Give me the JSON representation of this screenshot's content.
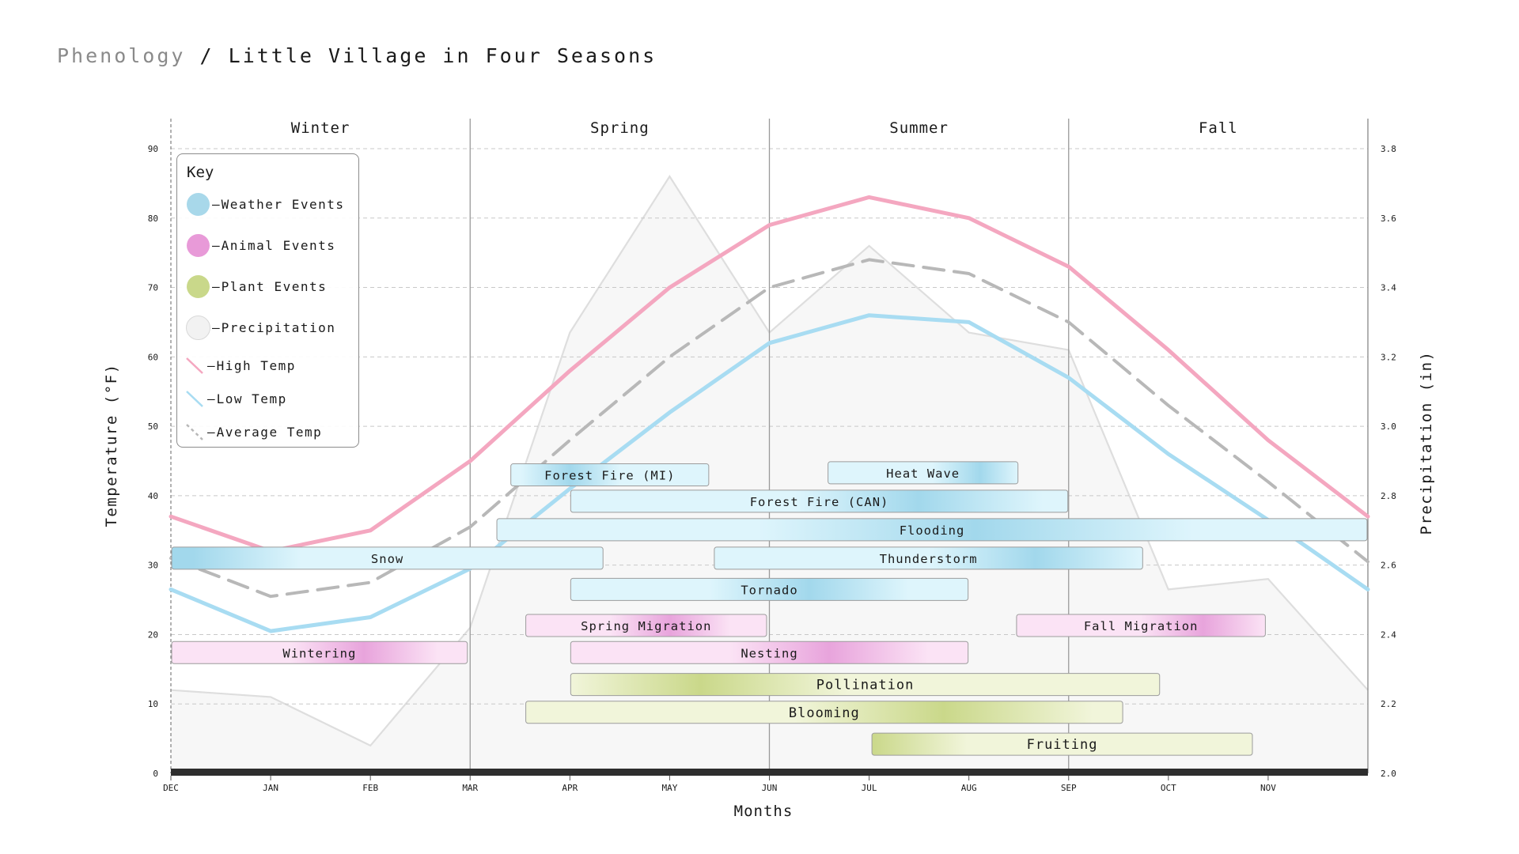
{
  "header": {
    "crumb": "Phenology",
    "separator": "/",
    "title": "Little Village in Four Seasons"
  },
  "legend": {
    "title": "Key",
    "items": [
      {
        "label": "Weather Events",
        "kind": "dot",
        "color": "#a8d8ea"
      },
      {
        "label": "Animal Events",
        "kind": "dot",
        "color": "#e89ad8"
      },
      {
        "label": "Plant Events",
        "kind": "dot",
        "color": "#c9d88a"
      },
      {
        "label": "Precipitation",
        "kind": "dot",
        "color": "#f2f2f2"
      },
      {
        "label": "High Temp",
        "kind": "line",
        "color": "#f4a7c0"
      },
      {
        "label": "Low Temp",
        "kind": "line",
        "color": "#a8dcf2"
      },
      {
        "label": "Average Temp",
        "kind": "dash",
        "color": "#b8b8b8"
      }
    ]
  },
  "chart_data": {
    "type": "line",
    "xlabel": "Months",
    "ylabel": "Temperature (°F)",
    "y2label": "Precipitation (in)",
    "months": [
      "DEC",
      "JAN",
      "FEB",
      "MAR",
      "APR",
      "MAY",
      "JUN",
      "JUL",
      "AUG",
      "SEP",
      "OCT",
      "NOV"
    ],
    "x_domain": [
      0,
      12
    ],
    "ylim": [
      0,
      90
    ],
    "y2lim": [
      2.0,
      3.8
    ],
    "yticks": [
      0,
      10,
      20,
      30,
      40,
      50,
      60,
      70,
      80,
      90
    ],
    "y2ticks": [
      "2.0",
      "2.2",
      "2.4",
      "2.6",
      "2.8",
      "3.0",
      "3.2",
      "3.4",
      "3.6",
      "3.8"
    ],
    "grid": true,
    "seasons": [
      {
        "name": "Winter",
        "start": 0,
        "end": 3
      },
      {
        "name": "Spring",
        "start": 3,
        "end": 6
      },
      {
        "name": "Summer",
        "start": 6,
        "end": 9
      },
      {
        "name": "Fall",
        "start": 9,
        "end": 12
      }
    ],
    "series": [
      {
        "name": "High Temp",
        "color": "#f4a7c0",
        "style": "solid",
        "x": [
          0,
          1,
          2,
          3,
          4,
          5,
          6,
          7,
          8,
          9,
          10,
          11,
          12
        ],
        "y": [
          37,
          32,
          35,
          45,
          58,
          70,
          79,
          83,
          80,
          73,
          61,
          48,
          37
        ]
      },
      {
        "name": "Low Temp",
        "color": "#a8dcf2",
        "style": "solid",
        "x": [
          0,
          1,
          2,
          3,
          4,
          5,
          6,
          7,
          8,
          9,
          10,
          11,
          12
        ],
        "y": [
          26.5,
          20.5,
          22.5,
          29.5,
          41,
          52,
          62,
          66,
          65,
          57,
          46,
          36.5,
          26.5
        ]
      },
      {
        "name": "Average Temp",
        "color": "#b8b8b8",
        "style": "dashed",
        "x": [
          0,
          1,
          2,
          3,
          4,
          5,
          6,
          7,
          8,
          9,
          10,
          11,
          12
        ],
        "y": [
          31,
          25.5,
          27.5,
          35.5,
          48,
          60,
          70,
          74,
          72,
          65,
          53,
          42,
          30.5
        ]
      }
    ],
    "precipitation": {
      "name": "Precipitation",
      "x": [
        0,
        1,
        2,
        3,
        4,
        5,
        6,
        7,
        8,
        9,
        10,
        11,
        12
      ],
      "y": [
        2.24,
        2.22,
        2.08,
        2.42,
        3.27,
        3.72,
        3.27,
        3.52,
        3.27,
        3.22,
        2.53,
        2.56,
        2.24
      ]
    },
    "events": [
      {
        "label": "Forest Fire (MI)",
        "category": "weather",
        "start": 3.4,
        "end": 5.4,
        "row_temp": 43.0,
        "peak": 0.3
      },
      {
        "label": "Heat Wave",
        "category": "weather",
        "start": 6.58,
        "end": 8.5,
        "row_temp": 43.3,
        "peak": 0.8
      },
      {
        "label": "Forest Fire (CAN)",
        "category": "weather",
        "start": 4.0,
        "end": 9.0,
        "row_temp": 39.2,
        "peak": 0.7
      },
      {
        "label": "Flooding",
        "category": "weather",
        "start": 3.26,
        "end": 12.0,
        "row_temp": 35.1,
        "peak": 0.55
      },
      {
        "label": "Snow",
        "category": "weather",
        "start": 0.0,
        "end": 4.34,
        "row_temp": 31.0,
        "peak": 0.05
      },
      {
        "label": "Thunderstorm",
        "category": "weather",
        "start": 5.44,
        "end": 9.75,
        "row_temp": 31.0,
        "peak": 0.75
      },
      {
        "label": "Tornado",
        "category": "weather",
        "start": 4.0,
        "end": 8.0,
        "row_temp": 26.5,
        "peak": 0.6
      },
      {
        "label": "Spring Migration",
        "category": "animal",
        "start": 3.55,
        "end": 5.98,
        "row_temp": 21.3,
        "peak": 0.6
      },
      {
        "label": "Fall Migration",
        "category": "animal",
        "start": 8.47,
        "end": 10.98,
        "row_temp": 21.3,
        "peak": 0.75
      },
      {
        "label": "Wintering",
        "category": "animal",
        "start": 0.0,
        "end": 2.98,
        "row_temp": 17.4,
        "peak": 0.65
      },
      {
        "label": "Nesting",
        "category": "animal",
        "start": 4.0,
        "end": 8.0,
        "row_temp": 17.4,
        "peak": 0.65
      },
      {
        "label": "Pollination",
        "category": "plant",
        "start": 4.0,
        "end": 9.92,
        "row_temp": 12.8,
        "peak": 0.22
      },
      {
        "label": "Blooming",
        "category": "plant",
        "start": 3.55,
        "end": 9.55,
        "row_temp": 8.8,
        "peak": 0.7
      },
      {
        "label": "Fruiting",
        "category": "plant",
        "start": 7.02,
        "end": 10.85,
        "row_temp": 4.2,
        "peak": 0.0
      }
    ],
    "category_colors": {
      "weather": {
        "light": "#def5fc",
        "mid": "#a2d8ec"
      },
      "animal": {
        "light": "#fbe3f5",
        "mid": "#e8a4dc"
      },
      "plant": {
        "light": "#f1f5da",
        "mid": "#cad88a"
      }
    }
  }
}
